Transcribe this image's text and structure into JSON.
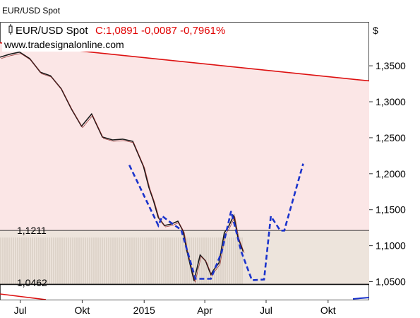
{
  "window_title": "EUR/USD Spot",
  "header": {
    "symbol": "EUR/USD Spot",
    "quote": "C:1,0891 -0,0087 -0,7961%",
    "website": "www.tradesignalonline.com"
  },
  "colors": {
    "quote": "#e00000",
    "upper_zone": "#fbe6e6",
    "lower_zone": "#ede4dc",
    "trendline": "#dd1111",
    "projection": "#1a33cc",
    "price": "#1a1a1a"
  },
  "chart_data": {
    "type": "line",
    "title": "EUR/USD Spot",
    "unit": "$",
    "ylim": [
      1.025,
      1.41
    ],
    "yticks": [
      {
        "value": 1.35,
        "label": "1,3500"
      },
      {
        "value": 1.3,
        "label": "1,3000"
      },
      {
        "value": 1.25,
        "label": "1,2500"
      },
      {
        "value": 1.2,
        "label": "1,2000"
      },
      {
        "value": 1.15,
        "label": "1,1500"
      },
      {
        "value": 1.1,
        "label": "1,1000"
      },
      {
        "value": 1.05,
        "label": "1,0500"
      }
    ],
    "xticks": [
      {
        "date": "2014-07-01",
        "label": "Jul"
      },
      {
        "date": "2014-10-01",
        "label": "Okt"
      },
      {
        "date": "2015-01-01",
        "label": "2015"
      },
      {
        "date": "2015-04-01",
        "label": "Apr"
      },
      {
        "date": "2015-07-01",
        "label": "Jul"
      },
      {
        "date": "2015-10-01",
        "label": "Okt"
      }
    ],
    "xlim": [
      "2014-06-01",
      "2015-12-01"
    ],
    "levels": [
      {
        "label": "1,1211",
        "value": 1.1211
      },
      {
        "label": "1,0462",
        "value": 1.0462
      }
    ],
    "trendline": {
      "start": [
        "2014-06-01",
        1.382
      ],
      "end": [
        "2015-12-01",
        1.329
      ]
    },
    "price_series": {
      "name": "EUR/USD",
      "x": [
        "2014-06-01",
        "2014-06-15",
        "2014-06-30",
        "2014-07-15",
        "2014-07-31",
        "2014-08-15",
        "2014-08-31",
        "2014-09-15",
        "2014-09-30",
        "2014-10-15",
        "2014-10-31",
        "2014-11-15",
        "2014-11-30",
        "2014-12-15",
        "2014-12-31",
        "2015-01-08",
        "2015-01-15",
        "2015-01-22",
        "2015-01-31",
        "2015-02-10",
        "2015-02-20",
        "2015-02-28",
        "2015-03-05",
        "2015-03-10",
        "2015-03-16",
        "2015-03-25",
        "2015-04-02",
        "2015-04-10",
        "2015-04-14",
        "2015-04-22",
        "2015-04-30",
        "2015-05-06",
        "2015-05-14",
        "2015-05-20",
        "2015-05-28"
      ],
      "y": [
        1.362,
        1.366,
        1.369,
        1.36,
        1.341,
        1.336,
        1.318,
        1.29,
        1.266,
        1.283,
        1.251,
        1.247,
        1.248,
        1.245,
        1.21,
        1.181,
        1.162,
        1.139,
        1.128,
        1.13,
        1.134,
        1.12,
        1.094,
        1.075,
        1.051,
        1.087,
        1.079,
        1.06,
        1.066,
        1.076,
        1.118,
        1.126,
        1.142,
        1.112,
        1.092
      ]
    },
    "projection_series": {
      "name": "projection",
      "x": [
        "2014-12-10",
        "2015-01-22",
        "2015-01-28",
        "2015-02-08",
        "2015-02-25",
        "2015-03-18",
        "2015-04-10",
        "2015-04-26",
        "2015-05-10",
        "2015-05-25",
        "2015-06-10",
        "2015-06-28",
        "2015-07-08",
        "2015-07-22",
        "2015-07-28",
        "2015-08-25"
      ],
      "y": [
        1.212,
        1.128,
        1.141,
        1.133,
        1.122,
        1.054,
        1.054,
        1.091,
        1.148,
        1.092,
        1.052,
        1.053,
        1.141,
        1.121,
        1.121,
        1.214
      ]
    }
  }
}
